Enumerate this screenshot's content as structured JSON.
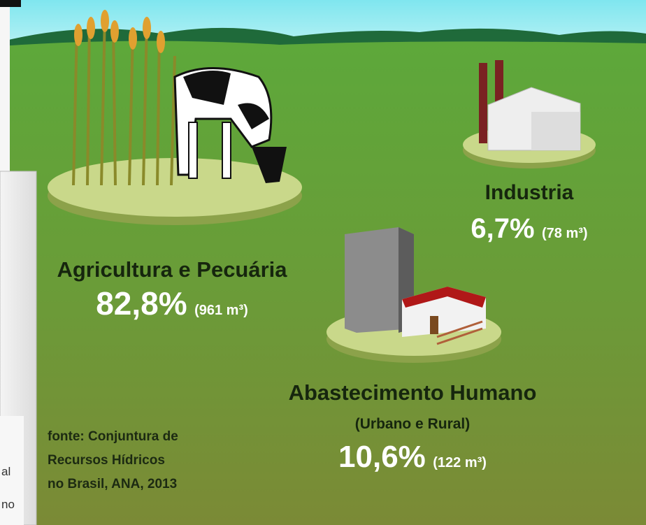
{
  "sectors": [
    {
      "label": "Industria",
      "percent": "6,7%",
      "volume": "(78 m³)"
    },
    {
      "label": "Agricultura e Pecuária",
      "percent": "82,8%",
      "volume": "(961 m³)"
    },
    {
      "label": "Abastecimento Humano",
      "subtitle": "(Urbano e Rural)",
      "percent": "10,6%",
      "volume": "(122 m³)"
    }
  ],
  "source": [
    "fonte: Conjuntura de",
    "Recursos Hídricos",
    "no Brasil, ANA, 2013"
  ],
  "background_window": {
    "fragments": [
      "al",
      "no"
    ]
  }
}
